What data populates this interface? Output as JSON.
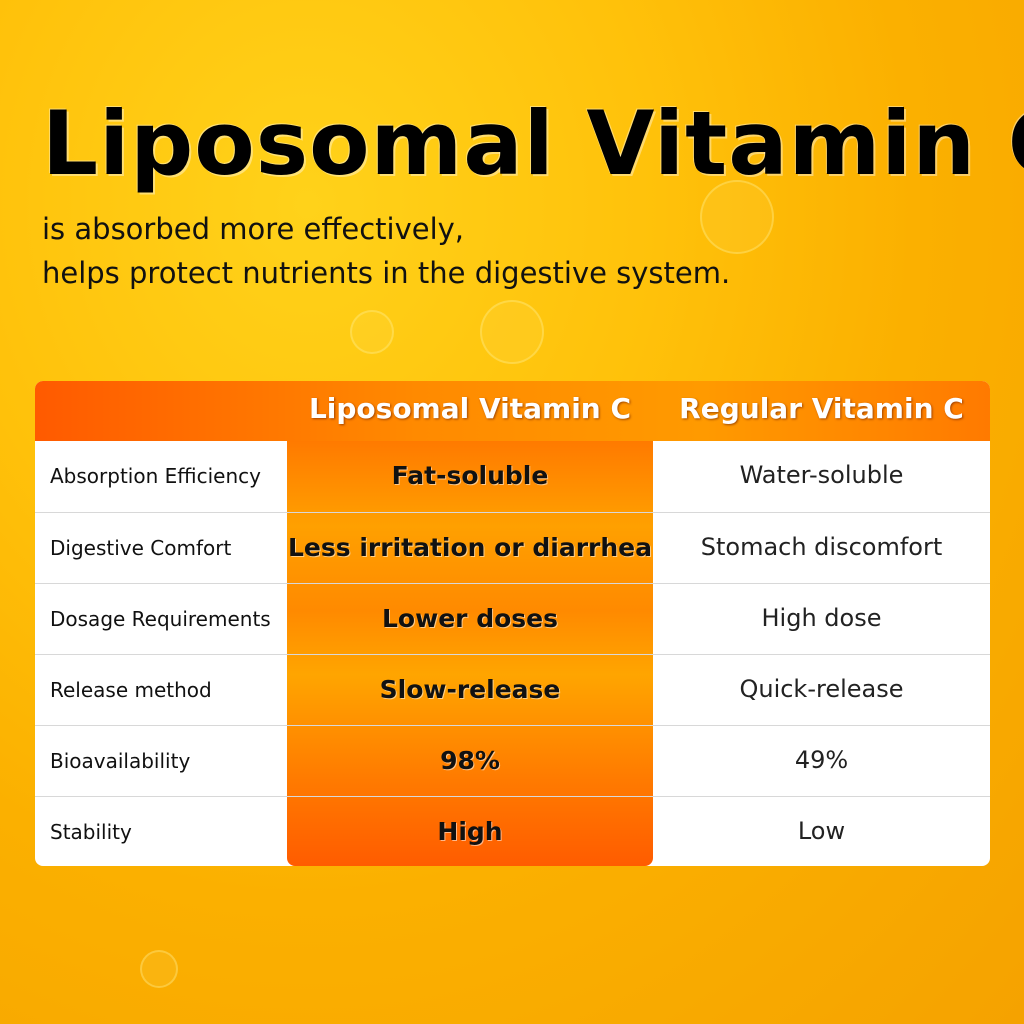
{
  "title": "Liposomal Vitamin C",
  "subtitle_lines": [
    "is absorbed more effectively,",
    "helps protect nutrients in the digestive system."
  ],
  "colors": {
    "accent_orange": "#ff7a00",
    "background_yellow": "#ffc10a"
  },
  "table": {
    "headers": [
      "",
      "Liposomal Vitamin C",
      "Regular Vitamin C"
    ],
    "rows": [
      {
        "label": "Absorption Efficiency",
        "liposomal": "Fat-soluble",
        "regular": "Water-soluble"
      },
      {
        "label": "Digestive Comfort",
        "liposomal": "Less irritation or diarrhea",
        "regular": "Stomach discomfort"
      },
      {
        "label": "Dosage Requirements",
        "liposomal": "Lower doses",
        "regular": "High dose"
      },
      {
        "label": "Release method",
        "liposomal": "Slow-release",
        "regular": "Quick-release"
      },
      {
        "label": "Bioavailability",
        "liposomal": "98%",
        "regular": "49%"
      },
      {
        "label": "Stability",
        "liposomal": "High",
        "regular": "Low"
      }
    ]
  }
}
